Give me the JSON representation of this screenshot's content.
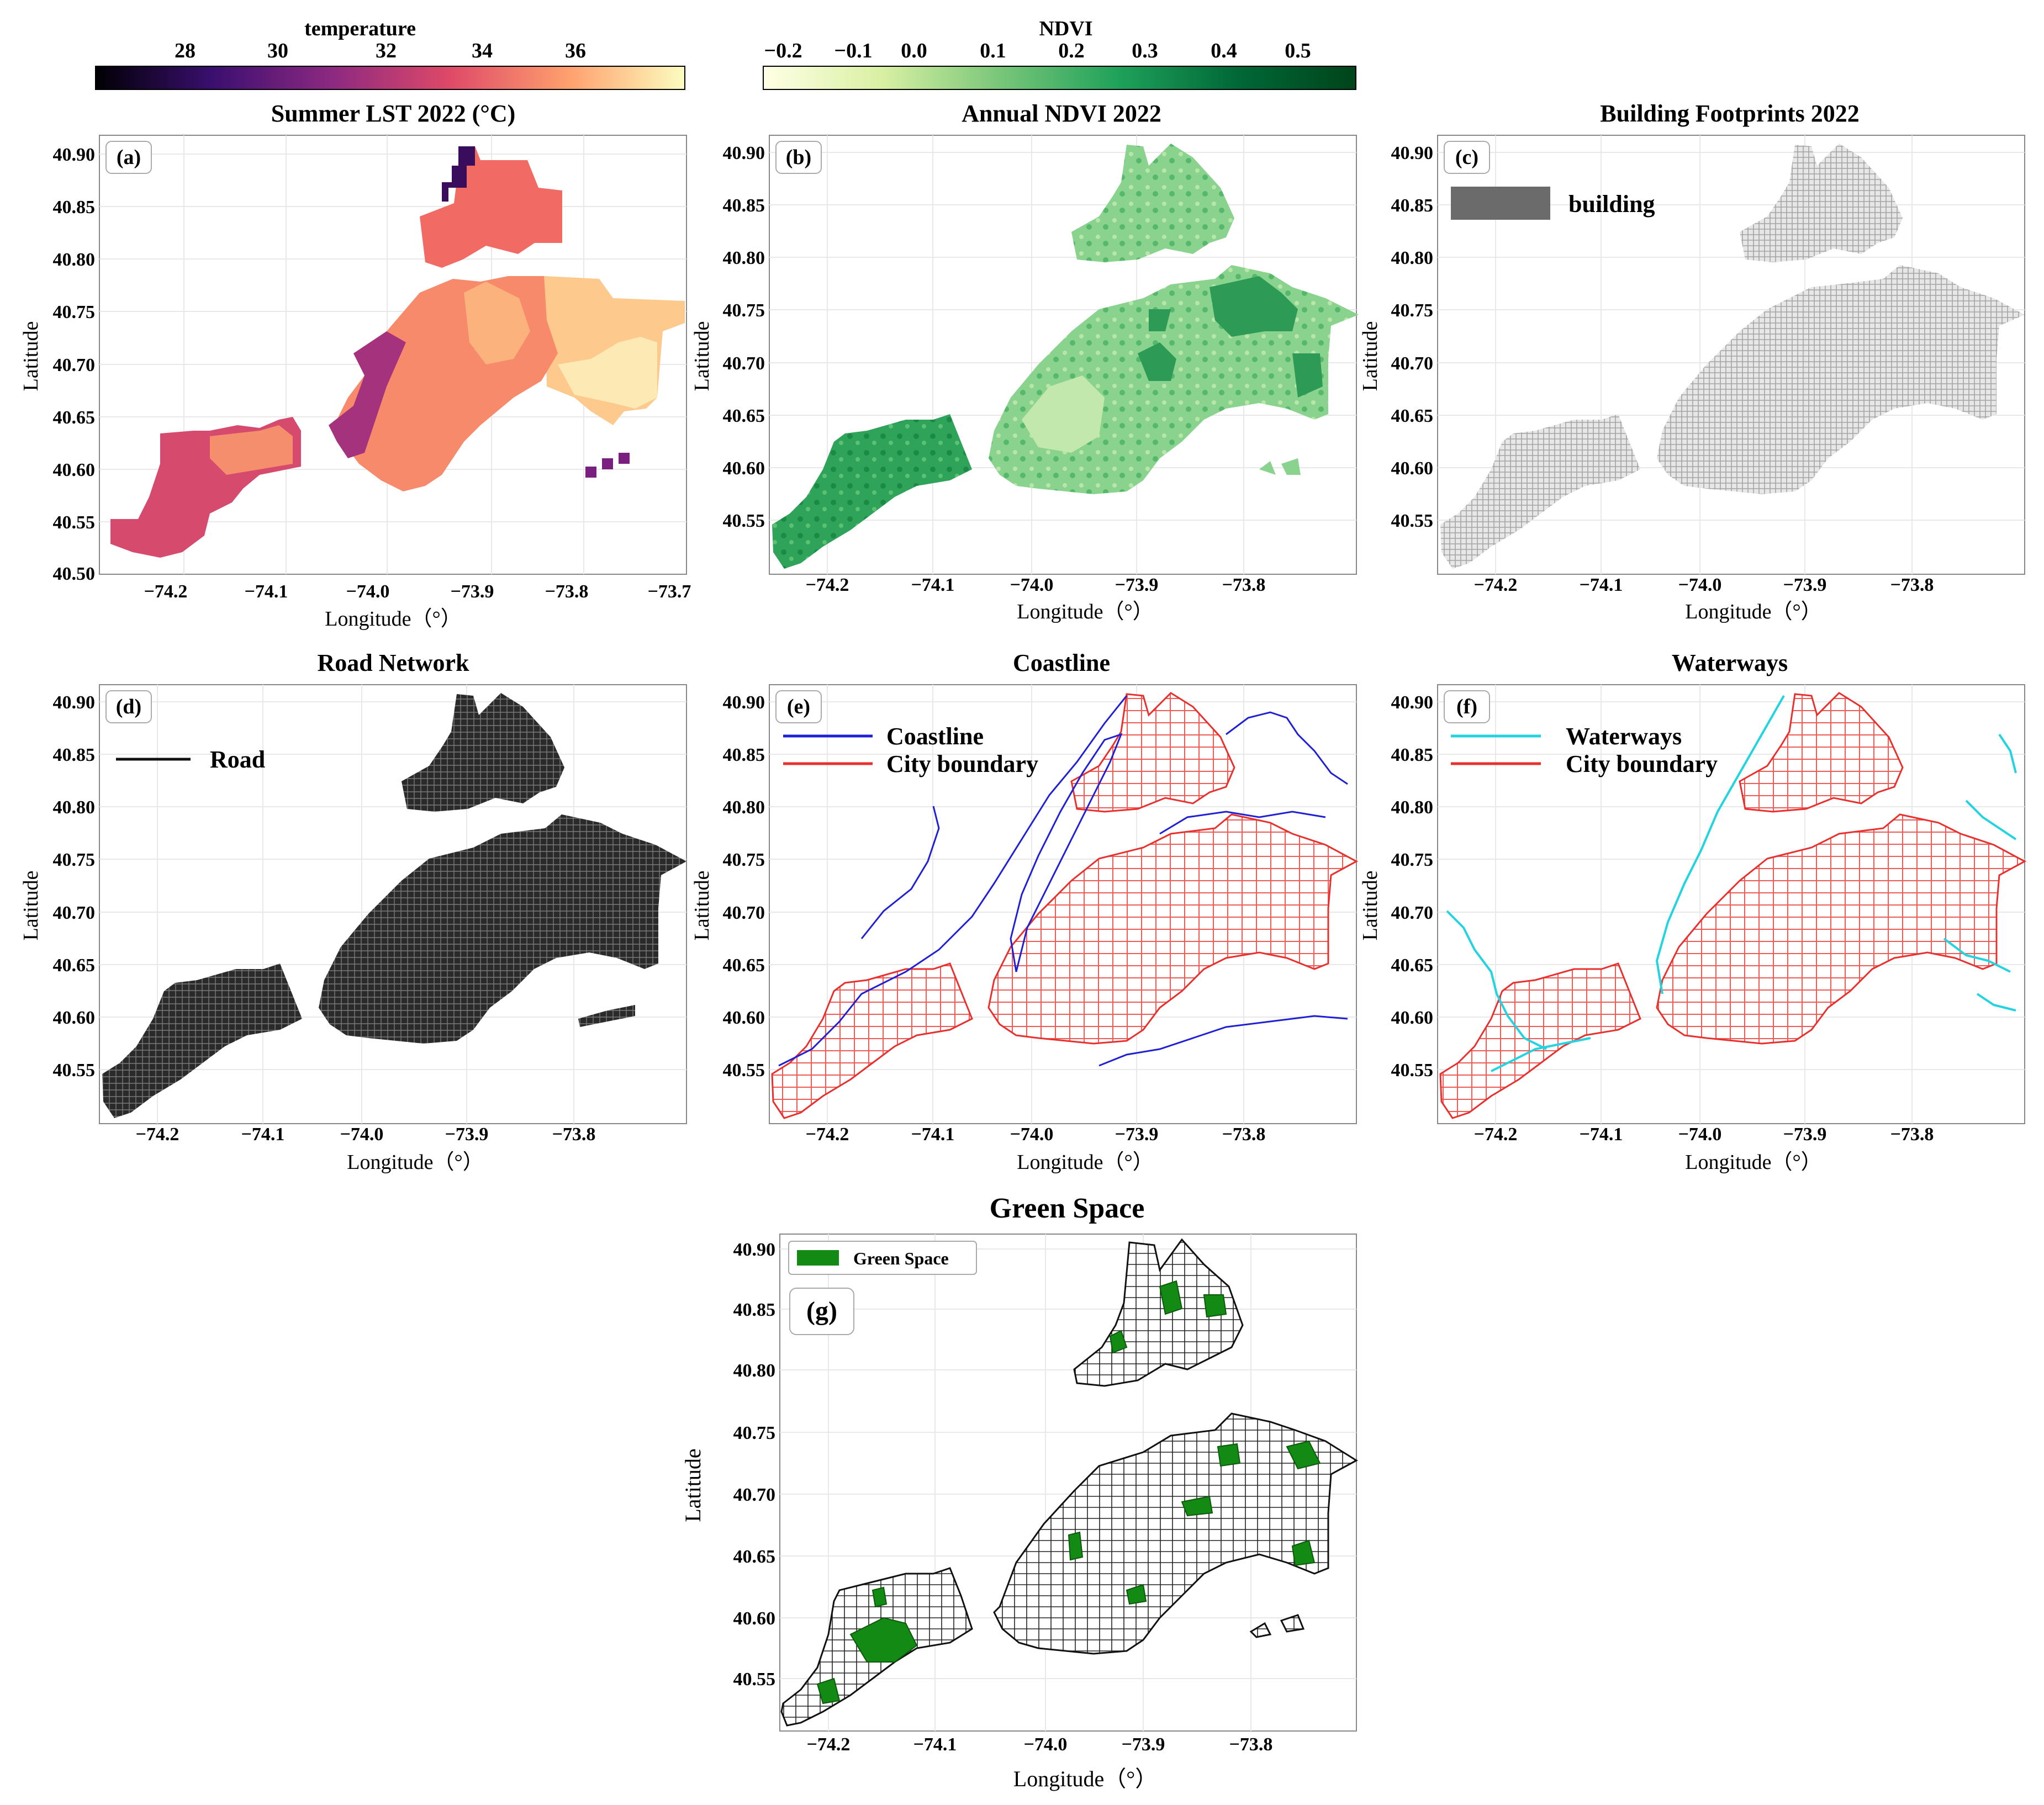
{
  "colorbars": {
    "temperature": {
      "label": "temperature",
      "ticks": [
        "28",
        "30",
        "32",
        "34",
        "36"
      ],
      "colors": [
        "#000004",
        "#3b0f70",
        "#8c2981",
        "#de4968",
        "#fe9f6d",
        "#fcfdbf"
      ]
    },
    "ndvi": {
      "label": "NDVI",
      "ticks": [
        "−0.2",
        "−0.1",
        "0.0",
        "0.1",
        "0.2",
        "0.3",
        "0.4",
        "0.5"
      ],
      "colors": [
        "#ffffe5",
        "#d9f0a3",
        "#78c679",
        "#1fa15a",
        "#006837",
        "#00441b"
      ]
    }
  },
  "axes": {
    "xlabel": "Longitude（°）",
    "ylabel": "Latitude",
    "xticks_full": [
      "−74.2",
      "−74.1",
      "−74.0",
      "−73.9",
      "−73.8",
      "−73.7"
    ],
    "xticks": [
      "−74.2",
      "−74.1",
      "−74.0",
      "−73.9",
      "−73.8"
    ],
    "yticks": [
      "40.90",
      "40.85",
      "40.80",
      "40.75",
      "40.70",
      "40.65",
      "40.60",
      "40.55"
    ],
    "ytick_bottom": "40.50"
  },
  "panels": {
    "a": {
      "title": "Summer LST 2022 (°C)",
      "tag": "(a)"
    },
    "b": {
      "title": "Annual NDVI 2022",
      "tag": "(b)"
    },
    "c": {
      "title": "Building Footprints 2022",
      "tag": "(c)",
      "legend": [
        "building"
      ]
    },
    "d": {
      "title": "Road Network",
      "tag": "(d)",
      "legend": [
        "Road"
      ]
    },
    "e": {
      "title": "Coastline",
      "tag": "(e)",
      "legend": [
        "Coastline",
        "City boundary"
      ]
    },
    "f": {
      "title": "Waterways",
      "tag": "(f)",
      "legend": [
        "Waterways",
        "City boundary"
      ]
    },
    "g": {
      "title": "Green Space",
      "tag": "(g)",
      "legend": [
        "Green Space"
      ]
    }
  },
  "colors": {
    "building": "#6b6b6b",
    "building_fill": "#cfcfcf",
    "road": "#111111",
    "coastline": "#1f1fd6",
    "city_boundary": "#e8302e",
    "waterways": "#22d3e0",
    "green_space": "#138a13",
    "ndvi_base": "#7dcf86",
    "grid": "#e8e8e8"
  }
}
